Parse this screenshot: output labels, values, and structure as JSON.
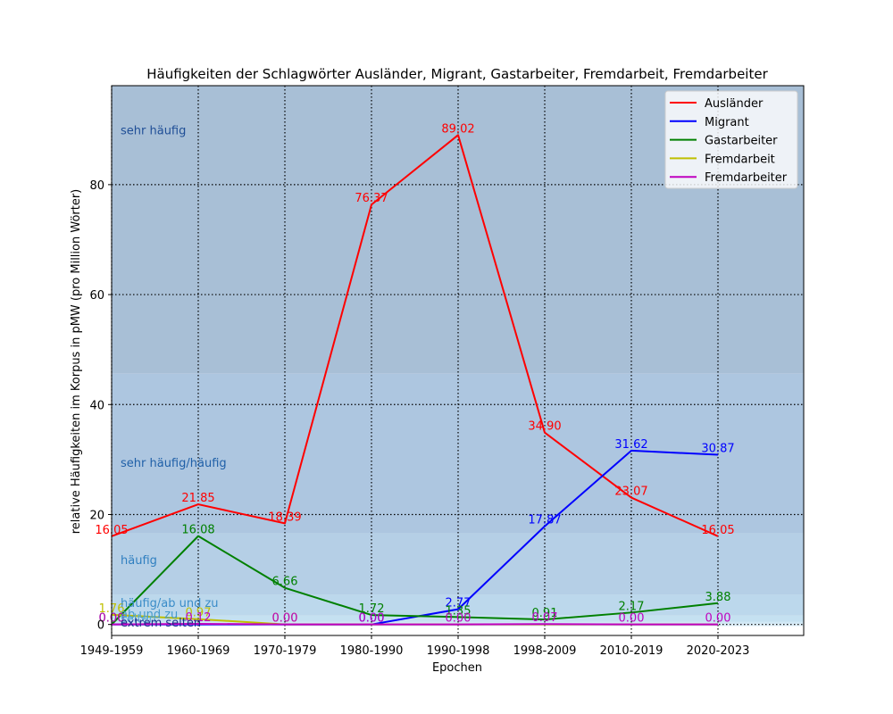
{
  "chart_data": {
    "type": "line",
    "title": "Häufigkeiten der Schlagwörter Ausländer, Migrant, Gastarbeiter, Fremdarbeit, Fremdarbeiter",
    "xlabel": "Epochen",
    "ylabel": "relative Häufigkeiten im Korpus in pMW (pro Million Wörter)",
    "categories": [
      "1949-1959",
      "1960-1969",
      "1970-1979",
      "1980-1990",
      "1990-1998",
      "1998-2009",
      "2010-2019",
      "2020-2023"
    ],
    "ylim": [
      -2,
      98
    ],
    "yticks": [
      0,
      20,
      40,
      60,
      80
    ],
    "grid": true,
    "legend_position": "top-right",
    "bands": [
      {
        "label": "sehr häufig",
        "from": 45.6,
        "to": 98,
        "color": "#a8bfd6",
        "label_color": "#1f4e96",
        "label_y": 90
      },
      {
        "label": "sehr häufig/häufig",
        "from": 16.6,
        "to": 45.6,
        "color": "#adc6e0",
        "label_color": "#2060a8",
        "label_y": 29.5
      },
      {
        "label": "häufig",
        "from": 5.4,
        "to": 16.6,
        "color": "#b5cfe6",
        "label_color": "#2f7fc0",
        "label_y": 11.8
      },
      {
        "label": "häufig/ab und zu",
        "from": 1.6,
        "to": 5.4,
        "color": "#bcd8ec",
        "label_color": "#3a8cc8",
        "label_y": 4.0
      },
      {
        "label": "ab und zu",
        "from": 0.45,
        "to": 1.6,
        "color": "#c5e1f1",
        "label_color": "#4499cc",
        "label_y": 2.0
      },
      {
        "label": "selten",
        "from": 0.08,
        "to": 0.45,
        "color": "#d2e8f5",
        "label_color": "#55a8d4",
        "label_y": 1.2
      },
      {
        "label": "extrem selten",
        "from": -0.3,
        "to": 0.08,
        "color": "#ddeef8",
        "label_color": "#1a2f8a",
        "label_y": 0.4
      }
    ],
    "series": [
      {
        "name": "Ausländer",
        "color": "#ff0000",
        "values": [
          16.05,
          21.85,
          18.39,
          76.37,
          89.02,
          34.9,
          23.07,
          16.05
        ],
        "labels": [
          "16.05",
          "21.85",
          "18.39",
          "76.37",
          "89.02",
          "34.90",
          "23.07",
          "16.05"
        ]
      },
      {
        "name": "Migrant",
        "color": "#0000ff",
        "values": [
          0.0,
          0.0,
          0.0,
          0.0,
          2.77,
          17.87,
          31.62,
          30.87
        ],
        "labels": [
          "",
          "",
          "",
          "0.00",
          "2.77",
          "17.87",
          "31.62",
          "30.87"
        ]
      },
      {
        "name": "Gastarbeiter",
        "color": "#008000",
        "values": [
          0.0,
          16.08,
          6.66,
          1.72,
          1.35,
          0.91,
          2.17,
          3.88
        ],
        "labels": [
          "0.00",
          "16.08",
          "6.66",
          "1.72",
          "1.35",
          "0.91",
          "2.17",
          "3.88"
        ]
      },
      {
        "name": "Fremdarbeit",
        "color": "#bfbf00",
        "values": [
          1.76,
          0.97,
          0.0,
          0.0,
          0.0,
          0.0,
          0.0,
          0.0
        ],
        "labels": [
          "1.76",
          "0.97",
          "0.00",
          "",
          "",
          "",
          "",
          ""
        ]
      },
      {
        "name": "Fremdarbeiter",
        "color": "#bf00bf",
        "values": [
          0.0,
          0.12,
          0.0,
          0.0,
          0.0,
          0.07,
          0.0,
          0.0
        ],
        "labels": [
          "0.00",
          "0.12",
          "0.00",
          "0.00",
          "0.00",
          "0.07",
          "0.00",
          "0.00"
        ]
      }
    ]
  }
}
